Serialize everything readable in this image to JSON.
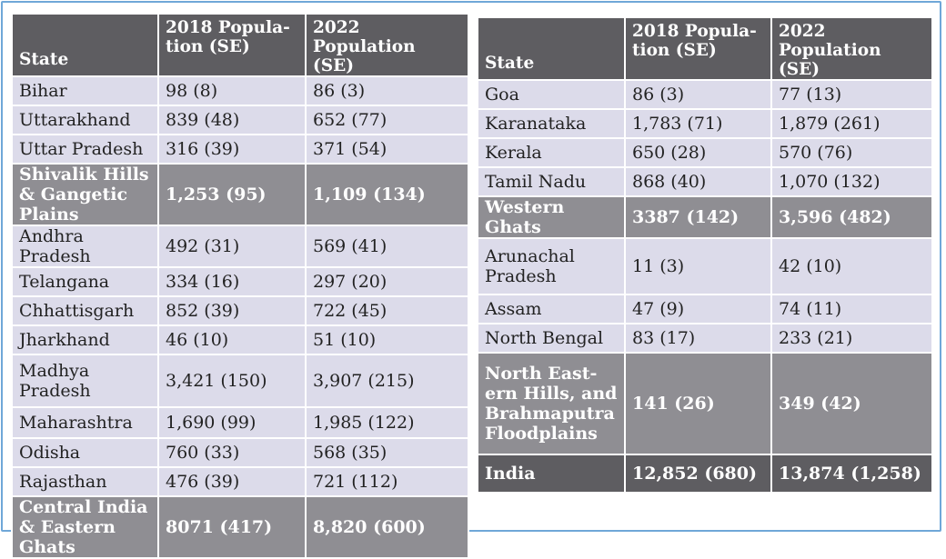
{
  "headers": {
    "state": "State",
    "pop2018": "2018 Popula-tion (SE)",
    "pop2022": "2022 Population (SE)"
  },
  "left_table": {
    "rows": [
      {
        "state": "Bihar",
        "pop2018": "98 (8)",
        "pop2022": "86 (3)",
        "type": "state"
      },
      {
        "state": "Uttarakhand",
        "pop2018": "839 (48)",
        "pop2022": "652 (77)",
        "type": "state"
      },
      {
        "state": "Uttar Pradesh",
        "pop2018": "316 (39)",
        "pop2022": "371 (54)",
        "type": "state"
      },
      {
        "state": "Shivalik Hills & Gangetic Plains",
        "pop2018": "1,253 (95)",
        "pop2022": "1,109 (134)",
        "type": "region"
      },
      {
        "state": "Andhra Pradesh",
        "pop2018": "492 (31)",
        "pop2022": "569 (41)",
        "type": "state"
      },
      {
        "state": "Telangana",
        "pop2018": "334 (16)",
        "pop2022": "297 (20)",
        "type": "state"
      },
      {
        "state": "Chhattisgarh",
        "pop2018": "852 (39)",
        "pop2022": "722 (45)",
        "type": "state"
      },
      {
        "state": "Jharkhand",
        "pop2018": "46 (10)",
        "pop2022": "51 (10)",
        "type": "state"
      },
      {
        "state": "Madhya Pradesh",
        "pop2018": "3,421 (150)",
        "pop2022": "3,907 (215)",
        "type": "state"
      },
      {
        "state": "Maharashtra",
        "pop2018": "1,690 (99)",
        "pop2022": "1,985 (122)",
        "type": "state"
      },
      {
        "state": "Odisha",
        "pop2018": "760 (33)",
        "pop2022": "568 (35)",
        "type": "state"
      },
      {
        "state": "Rajasthan",
        "pop2018": "476 (39)",
        "pop2022": "721 (112)",
        "type": "state"
      },
      {
        "state": "Central India & Eastern Ghats",
        "pop2018": "8071 (417)",
        "pop2022": "8,820 (600)",
        "type": "region"
      }
    ]
  },
  "right_table": {
    "rows": [
      {
        "state": "Goa",
        "pop2018": "86 (3)",
        "pop2022": "77 (13)",
        "type": "state"
      },
      {
        "state": "Karanataka",
        "pop2018": "1,783 (71)",
        "pop2022": "1,879 (261)",
        "type": "state"
      },
      {
        "state": "Kerala",
        "pop2018": "650 (28)",
        "pop2022": "570 (76)",
        "type": "state"
      },
      {
        "state": "Tamil Nadu",
        "pop2018": "868 (40)",
        "pop2022": "1,070 (132)",
        "type": "state"
      },
      {
        "state": "Western Ghats",
        "pop2018": "3387 (142)",
        "pop2022": "3,596 (482)",
        "type": "region"
      },
      {
        "state": "Arunachal Pradesh",
        "pop2018": "11 (3)",
        "pop2022": "42 (10)",
        "type": "state"
      },
      {
        "state": "Assam",
        "pop2018": "47 (9)",
        "pop2022": "74 (11)",
        "type": "state"
      },
      {
        "state": "North Bengal",
        "pop2018": "83 (17)",
        "pop2022": "233 (21)",
        "type": "state"
      },
      {
        "state": "North East-ern Hills, and Brahmaputra Floodplains",
        "pop2018": "141 (26)",
        "pop2022": "349 (42)",
        "type": "region"
      },
      {
        "state": "India",
        "pop2018": "12,852 (680)",
        "pop2022": "13,874 (1,258)",
        "type": "total"
      }
    ]
  }
}
